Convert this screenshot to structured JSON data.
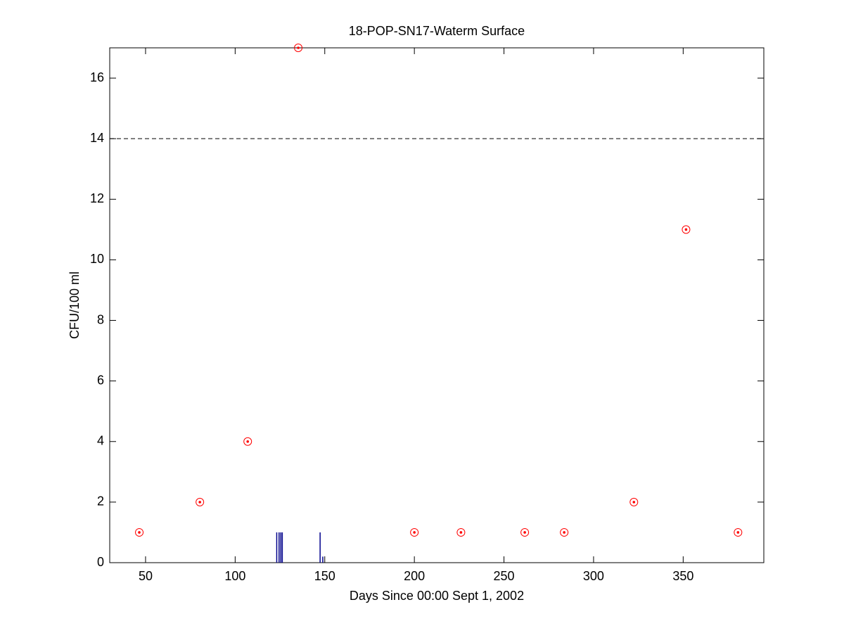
{
  "chart_data": {
    "type": "scatter",
    "title": "18-POP-SN17-Waterm Surface",
    "x_label": "Days Since 00:00 Sept 1, 2002",
    "y_label": "CFU/100 ml",
    "xlim": [
      30,
      395
    ],
    "xticks": [
      50,
      100,
      150,
      200,
      250,
      300,
      350
    ],
    "ylim": [
      0,
      17
    ],
    "yticks": [
      0,
      2,
      4,
      6,
      8,
      10,
      12,
      14,
      16
    ],
    "grid": false,
    "threshold": 14,
    "series": [
      {
        "color": "#ff0000",
        "marker": "circle-dot",
        "x": [
          46.5,
          80.3,
          107,
          135.2,
          200,
          226,
          261.6,
          283.6,
          322.5,
          351.6,
          380.6
        ],
        "values": [
          1,
          2,
          4,
          17,
          1,
          1,
          1,
          1,
          2,
          11,
          1
        ]
      },
      {
        "color": "#00008b",
        "marker": "stem",
        "x": [
          123.2,
          124.5,
          125.5,
          126.3,
          147.4,
          148.9
        ],
        "values": [
          1,
          1,
          1,
          1,
          1,
          0.2
        ]
      }
    ]
  }
}
